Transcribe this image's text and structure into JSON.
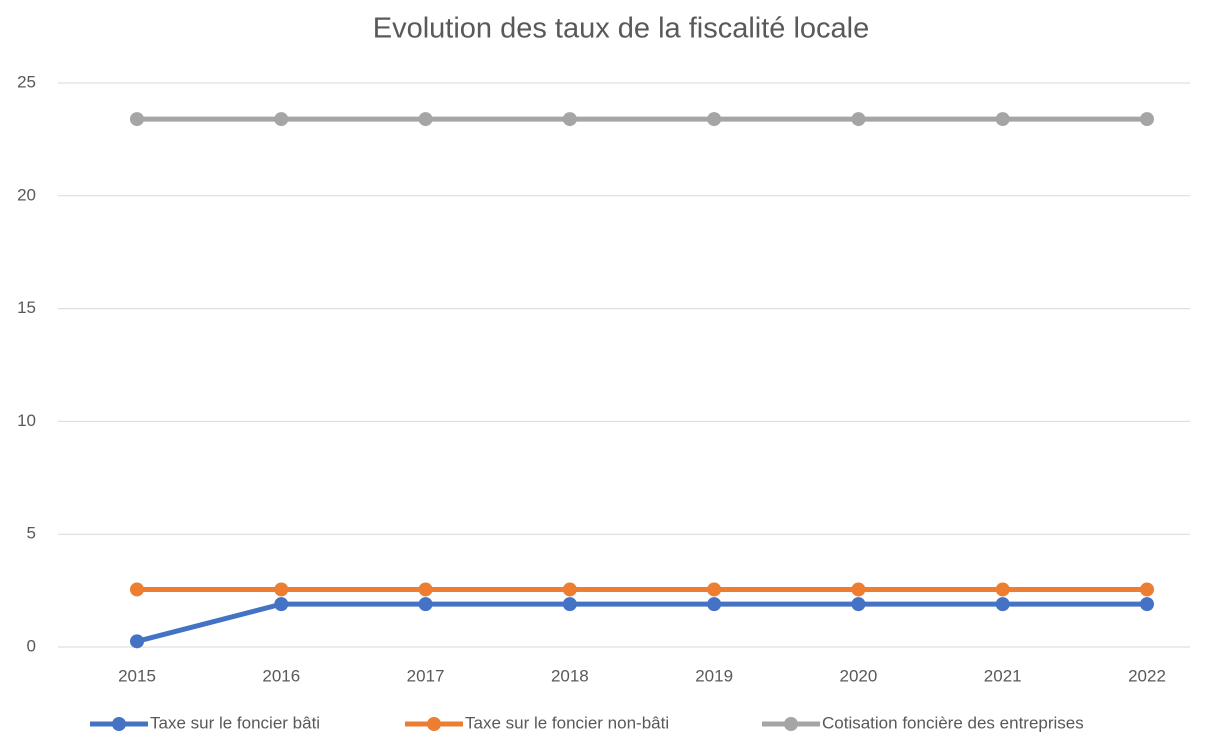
{
  "chart_data": {
    "type": "line",
    "title": "Evolution des taux de la fiscalité locale",
    "categories": [
      "2015",
      "2016",
      "2017",
      "2018",
      "2019",
      "2020",
      "2021",
      "2022"
    ],
    "series": [
      {
        "name": "Taxe sur le foncier bâti",
        "color": "#4472c4",
        "values": [
          0.25,
          1.9,
          1.9,
          1.9,
          1.9,
          1.9,
          1.9,
          1.9
        ]
      },
      {
        "name": "Taxe sur le foncier non-bâti",
        "color": "#ed7d31",
        "values": [
          2.55,
          2.55,
          2.55,
          2.55,
          2.55,
          2.55,
          2.55,
          2.55
        ]
      },
      {
        "name": "Cotisation foncière des entreprises",
        "color": "#a5a5a5",
        "values": [
          23.4,
          23.4,
          23.4,
          23.4,
          23.4,
          23.4,
          23.4,
          23.4
        ]
      }
    ],
    "ylim": [
      0,
      25
    ],
    "yticks": [
      0,
      5,
      10,
      15,
      20,
      25
    ],
    "grid": true,
    "legend": "bottom"
  }
}
